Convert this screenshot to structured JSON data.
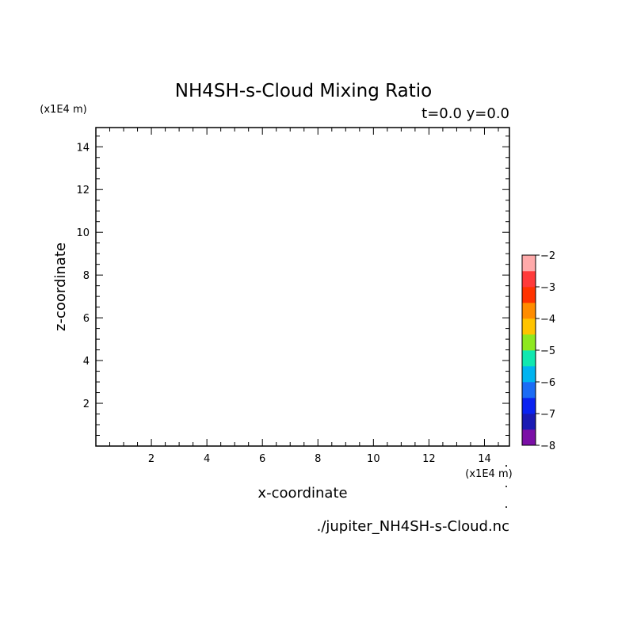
{
  "chart_data": {
    "type": "heatmap",
    "title": "NH4SH-s-Cloud Mixing Ratio",
    "subtitle": "t=0.0 y=0.0",
    "xlabel": "x-coordinate",
    "ylabel": "z-coordinate",
    "x_unit": "(x1E4 m)",
    "y_unit": "(x1E4 m)",
    "xlim": [
      0,
      14.9
    ],
    "ylim": [
      0,
      14.9
    ],
    "x_ticks": [
      2,
      4,
      6,
      8,
      10,
      12,
      14
    ],
    "y_ticks": [
      2,
      4,
      6,
      8,
      10,
      12,
      14
    ],
    "grid": false,
    "values": [],
    "source_file": "./jupiter_NH4SH-s-Cloud.nc",
    "colorbar": {
      "range": [
        -8,
        -2
      ],
      "labels": [
        -2,
        -3,
        -4,
        -5,
        -6,
        -7,
        -8
      ],
      "colors": [
        "#7b0fa6",
        "#1a1ab3",
        "#0a22f0",
        "#1b6cf5",
        "#00b4f0",
        "#10e8b0",
        "#8ee820",
        "#ffc400",
        "#ff8c00",
        "#ff3300",
        "#ff3a3a",
        "#ffaaaa"
      ]
    }
  }
}
